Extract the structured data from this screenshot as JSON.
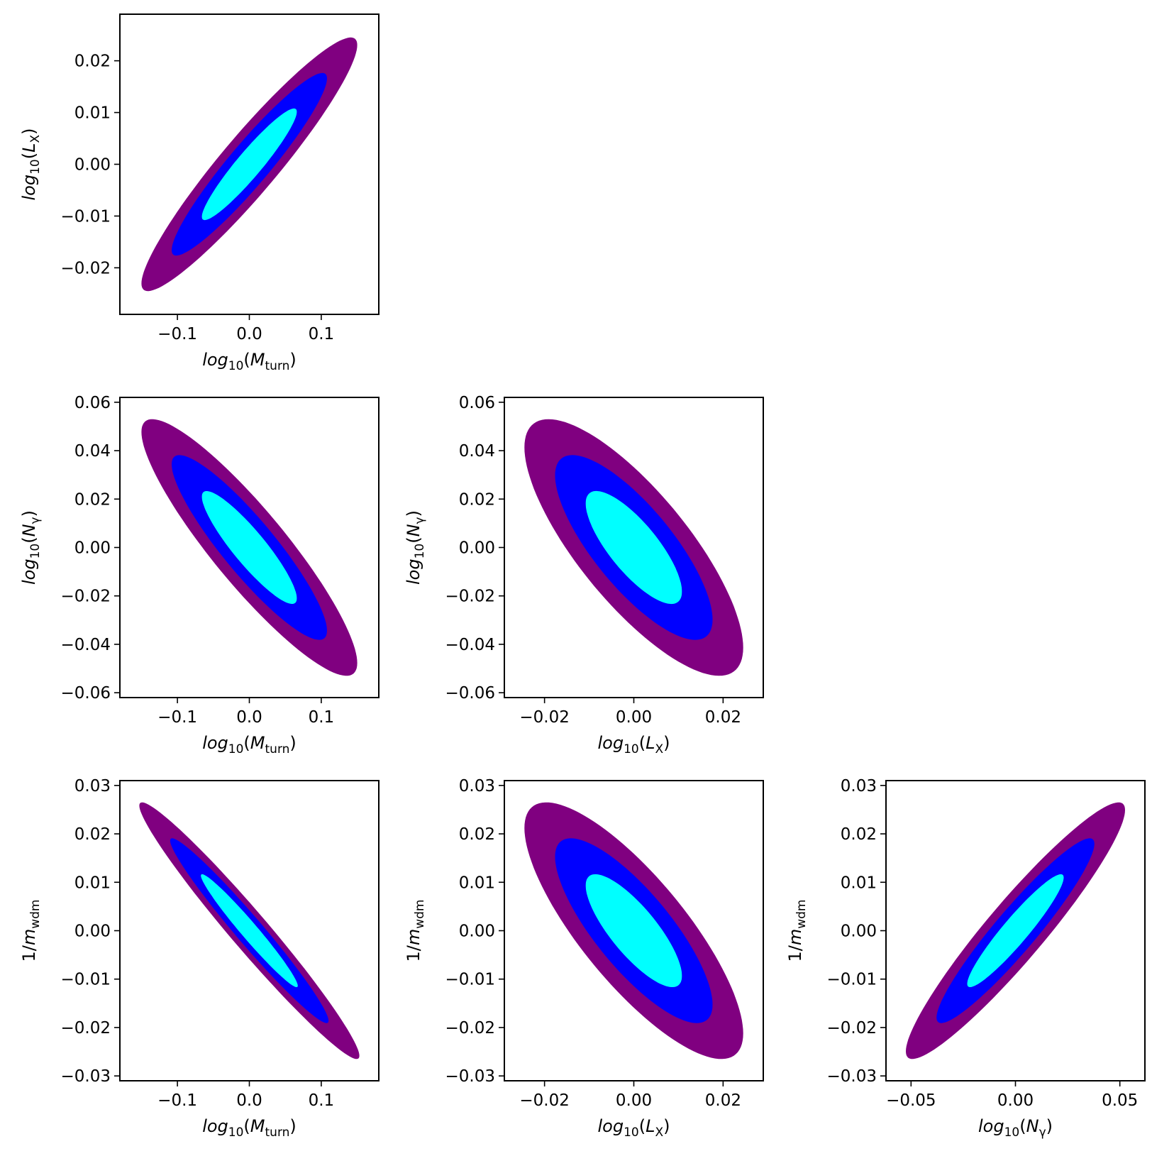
{
  "colors": {
    "level_3sigma": "#800080",
    "level_2sigma": "#0000ff",
    "level_1sigma": "#00ffff",
    "frame": "#000000",
    "background": "#ffffff"
  },
  "chart_data": [
    {
      "type": "contour",
      "row": 0,
      "col": 0,
      "x_param": "log10(M_turn)",
      "y_param": "log10(L_X)",
      "xlabel": {
        "main": "log",
        "sub": "10",
        "open": "(",
        "var": "M",
        "varsub": "turn",
        "close": ")"
      },
      "ylabel": {
        "main": "log",
        "sub": "10",
        "open": "(",
        "var": "L",
        "varsub": "X",
        "close": ")"
      },
      "xlim": [
        -0.18,
        0.18
      ],
      "ylim": [
        -0.029,
        0.029
      ],
      "xticks": [
        {
          "value": -0.1,
          "label": "−0.1"
        },
        {
          "value": 0.0,
          "label": "0.0"
        },
        {
          "value": 0.1,
          "label": "0.1"
        }
      ],
      "yticks": [
        {
          "value": -0.02,
          "label": "−0.02"
        },
        {
          "value": -0.01,
          "label": "−0.01"
        },
        {
          "value": 0.0,
          "label": "0.00"
        },
        {
          "value": 0.01,
          "label": "0.01"
        },
        {
          "value": 0.02,
          "label": "0.02"
        }
      ],
      "center": [
        0.0,
        0.0
      ],
      "x_extent_3sigma": 0.15,
      "y_extent_3sigma": 0.0245,
      "correlation": 0.94
    },
    {
      "type": "contour",
      "row": 1,
      "col": 0,
      "x_param": "log10(M_turn)",
      "y_param": "log10(N_gamma)",
      "xlabel": {
        "main": "log",
        "sub": "10",
        "open": "(",
        "var": "M",
        "varsub": "turn",
        "close": ")"
      },
      "ylabel": {
        "main": "log",
        "sub": "10",
        "open": "(",
        "var": "N",
        "varsub": "γ",
        "close": ")"
      },
      "xlim": [
        -0.18,
        0.18
      ],
      "ylim": [
        -0.062,
        0.062
      ],
      "xticks": [
        {
          "value": -0.1,
          "label": "−0.1"
        },
        {
          "value": 0.0,
          "label": "0.0"
        },
        {
          "value": 0.1,
          "label": "0.1"
        }
      ],
      "yticks": [
        {
          "value": -0.06,
          "label": "−0.06"
        },
        {
          "value": -0.04,
          "label": "−0.04"
        },
        {
          "value": -0.02,
          "label": "−0.02"
        },
        {
          "value": 0.0,
          "label": "0.00"
        },
        {
          "value": 0.02,
          "label": "0.02"
        },
        {
          "value": 0.04,
          "label": "0.04"
        },
        {
          "value": 0.06,
          "label": "0.06"
        }
      ],
      "center": [
        0.0,
        0.0
      ],
      "x_extent_3sigma": 0.15,
      "y_extent_3sigma": 0.053,
      "correlation": -0.9
    },
    {
      "type": "contour",
      "row": 1,
      "col": 1,
      "x_param": "log10(L_X)",
      "y_param": "log10(N_gamma)",
      "xlabel": {
        "main": "log",
        "sub": "10",
        "open": "(",
        "var": "L",
        "varsub": "X",
        "close": ")"
      },
      "ylabel": {
        "main": "log",
        "sub": "10",
        "open": "(",
        "var": "N",
        "varsub": "γ",
        "close": ")"
      },
      "xlim": [
        -0.029,
        0.029
      ],
      "ylim": [
        -0.062,
        0.062
      ],
      "xticks": [
        {
          "value": -0.02,
          "label": "−0.02"
        },
        {
          "value": 0.0,
          "label": "0.00"
        },
        {
          "value": 0.02,
          "label": "0.02"
        }
      ],
      "yticks": [
        {
          "value": -0.06,
          "label": "−0.06"
        },
        {
          "value": -0.04,
          "label": "−0.04"
        },
        {
          "value": -0.02,
          "label": "−0.02"
        },
        {
          "value": 0.0,
          "label": "0.00"
        },
        {
          "value": 0.02,
          "label": "0.02"
        },
        {
          "value": 0.04,
          "label": "0.04"
        },
        {
          "value": 0.06,
          "label": "0.06"
        }
      ],
      "center": [
        0.0,
        0.0
      ],
      "x_extent_3sigma": 0.0245,
      "y_extent_3sigma": 0.053,
      "correlation": -0.78
    },
    {
      "type": "contour",
      "row": 2,
      "col": 0,
      "x_param": "log10(M_turn)",
      "y_param": "1/m_wdm",
      "xlabel": {
        "main": "log",
        "sub": "10",
        "open": "(",
        "var": "M",
        "varsub": "turn",
        "close": ")"
      },
      "ylabel": {
        "main": "1/",
        "sub": "",
        "open": "",
        "var": "m",
        "varsub": "wdm",
        "close": ""
      },
      "xlim": [
        -0.18,
        0.18
      ],
      "ylim": [
        -0.031,
        0.031
      ],
      "xticks": [
        {
          "value": -0.1,
          "label": "−0.1"
        },
        {
          "value": 0.0,
          "label": "0.0"
        },
        {
          "value": 0.1,
          "label": "0.1"
        }
      ],
      "yticks": [
        {
          "value": -0.03,
          "label": "−0.03"
        },
        {
          "value": -0.02,
          "label": "−0.02"
        },
        {
          "value": -0.01,
          "label": "−0.01"
        },
        {
          "value": 0.0,
          "label": "0.00"
        },
        {
          "value": 0.01,
          "label": "0.01"
        },
        {
          "value": 0.02,
          "label": "0.02"
        },
        {
          "value": 0.03,
          "label": "0.03"
        }
      ],
      "center": [
        0.0,
        0.0
      ],
      "x_extent_3sigma": 0.153,
      "y_extent_3sigma": 0.0265,
      "correlation": -0.975
    },
    {
      "type": "contour",
      "row": 2,
      "col": 1,
      "x_param": "log10(L_X)",
      "y_param": "1/m_wdm",
      "xlabel": {
        "main": "log",
        "sub": "10",
        "open": "(",
        "var": "L",
        "varsub": "X",
        "close": ")"
      },
      "ylabel": {
        "main": "1/",
        "sub": "",
        "open": "",
        "var": "m",
        "varsub": "wdm",
        "close": ""
      },
      "xlim": [
        -0.029,
        0.029
      ],
      "ylim": [
        -0.031,
        0.031
      ],
      "xticks": [
        {
          "value": -0.02,
          "label": "−0.02"
        },
        {
          "value": 0.0,
          "label": "0.00"
        },
        {
          "value": 0.02,
          "label": "0.02"
        }
      ],
      "yticks": [
        {
          "value": -0.03,
          "label": "−0.03"
        },
        {
          "value": -0.02,
          "label": "−0.02"
        },
        {
          "value": -0.01,
          "label": "−0.01"
        },
        {
          "value": 0.0,
          "label": "0.00"
        },
        {
          "value": 0.01,
          "label": "0.01"
        },
        {
          "value": 0.02,
          "label": "0.02"
        },
        {
          "value": 0.03,
          "label": "0.03"
        }
      ],
      "center": [
        0.0,
        0.0
      ],
      "x_extent_3sigma": 0.0245,
      "y_extent_3sigma": 0.0265,
      "correlation": -0.8
    },
    {
      "type": "contour",
      "row": 2,
      "col": 2,
      "x_param": "log10(N_gamma)",
      "y_param": "1/m_wdm",
      "xlabel": {
        "main": "log",
        "sub": "10",
        "open": "(",
        "var": "N",
        "varsub": "γ",
        "close": ")"
      },
      "ylabel": {
        "main": "1/",
        "sub": "",
        "open": "",
        "var": "m",
        "varsub": "wdm",
        "close": ""
      },
      "xlim": [
        -0.062,
        0.062
      ],
      "ylim": [
        -0.031,
        0.031
      ],
      "xticks": [
        {
          "value": -0.05,
          "label": "−0.05"
        },
        {
          "value": 0.0,
          "label": "0.00"
        },
        {
          "value": 0.05,
          "label": "0.05"
        }
      ],
      "yticks": [
        {
          "value": -0.03,
          "label": "−0.03"
        },
        {
          "value": -0.02,
          "label": "−0.02"
        },
        {
          "value": -0.01,
          "label": "−0.01"
        },
        {
          "value": 0.0,
          "label": "0.00"
        },
        {
          "value": 0.01,
          "label": "0.01"
        },
        {
          "value": 0.02,
          "label": "0.02"
        },
        {
          "value": 0.03,
          "label": "0.03"
        }
      ],
      "center": [
        0.0,
        0.0
      ],
      "x_extent_3sigma": 0.0525,
      "y_extent_3sigma": 0.0265,
      "correlation": 0.94
    }
  ]
}
